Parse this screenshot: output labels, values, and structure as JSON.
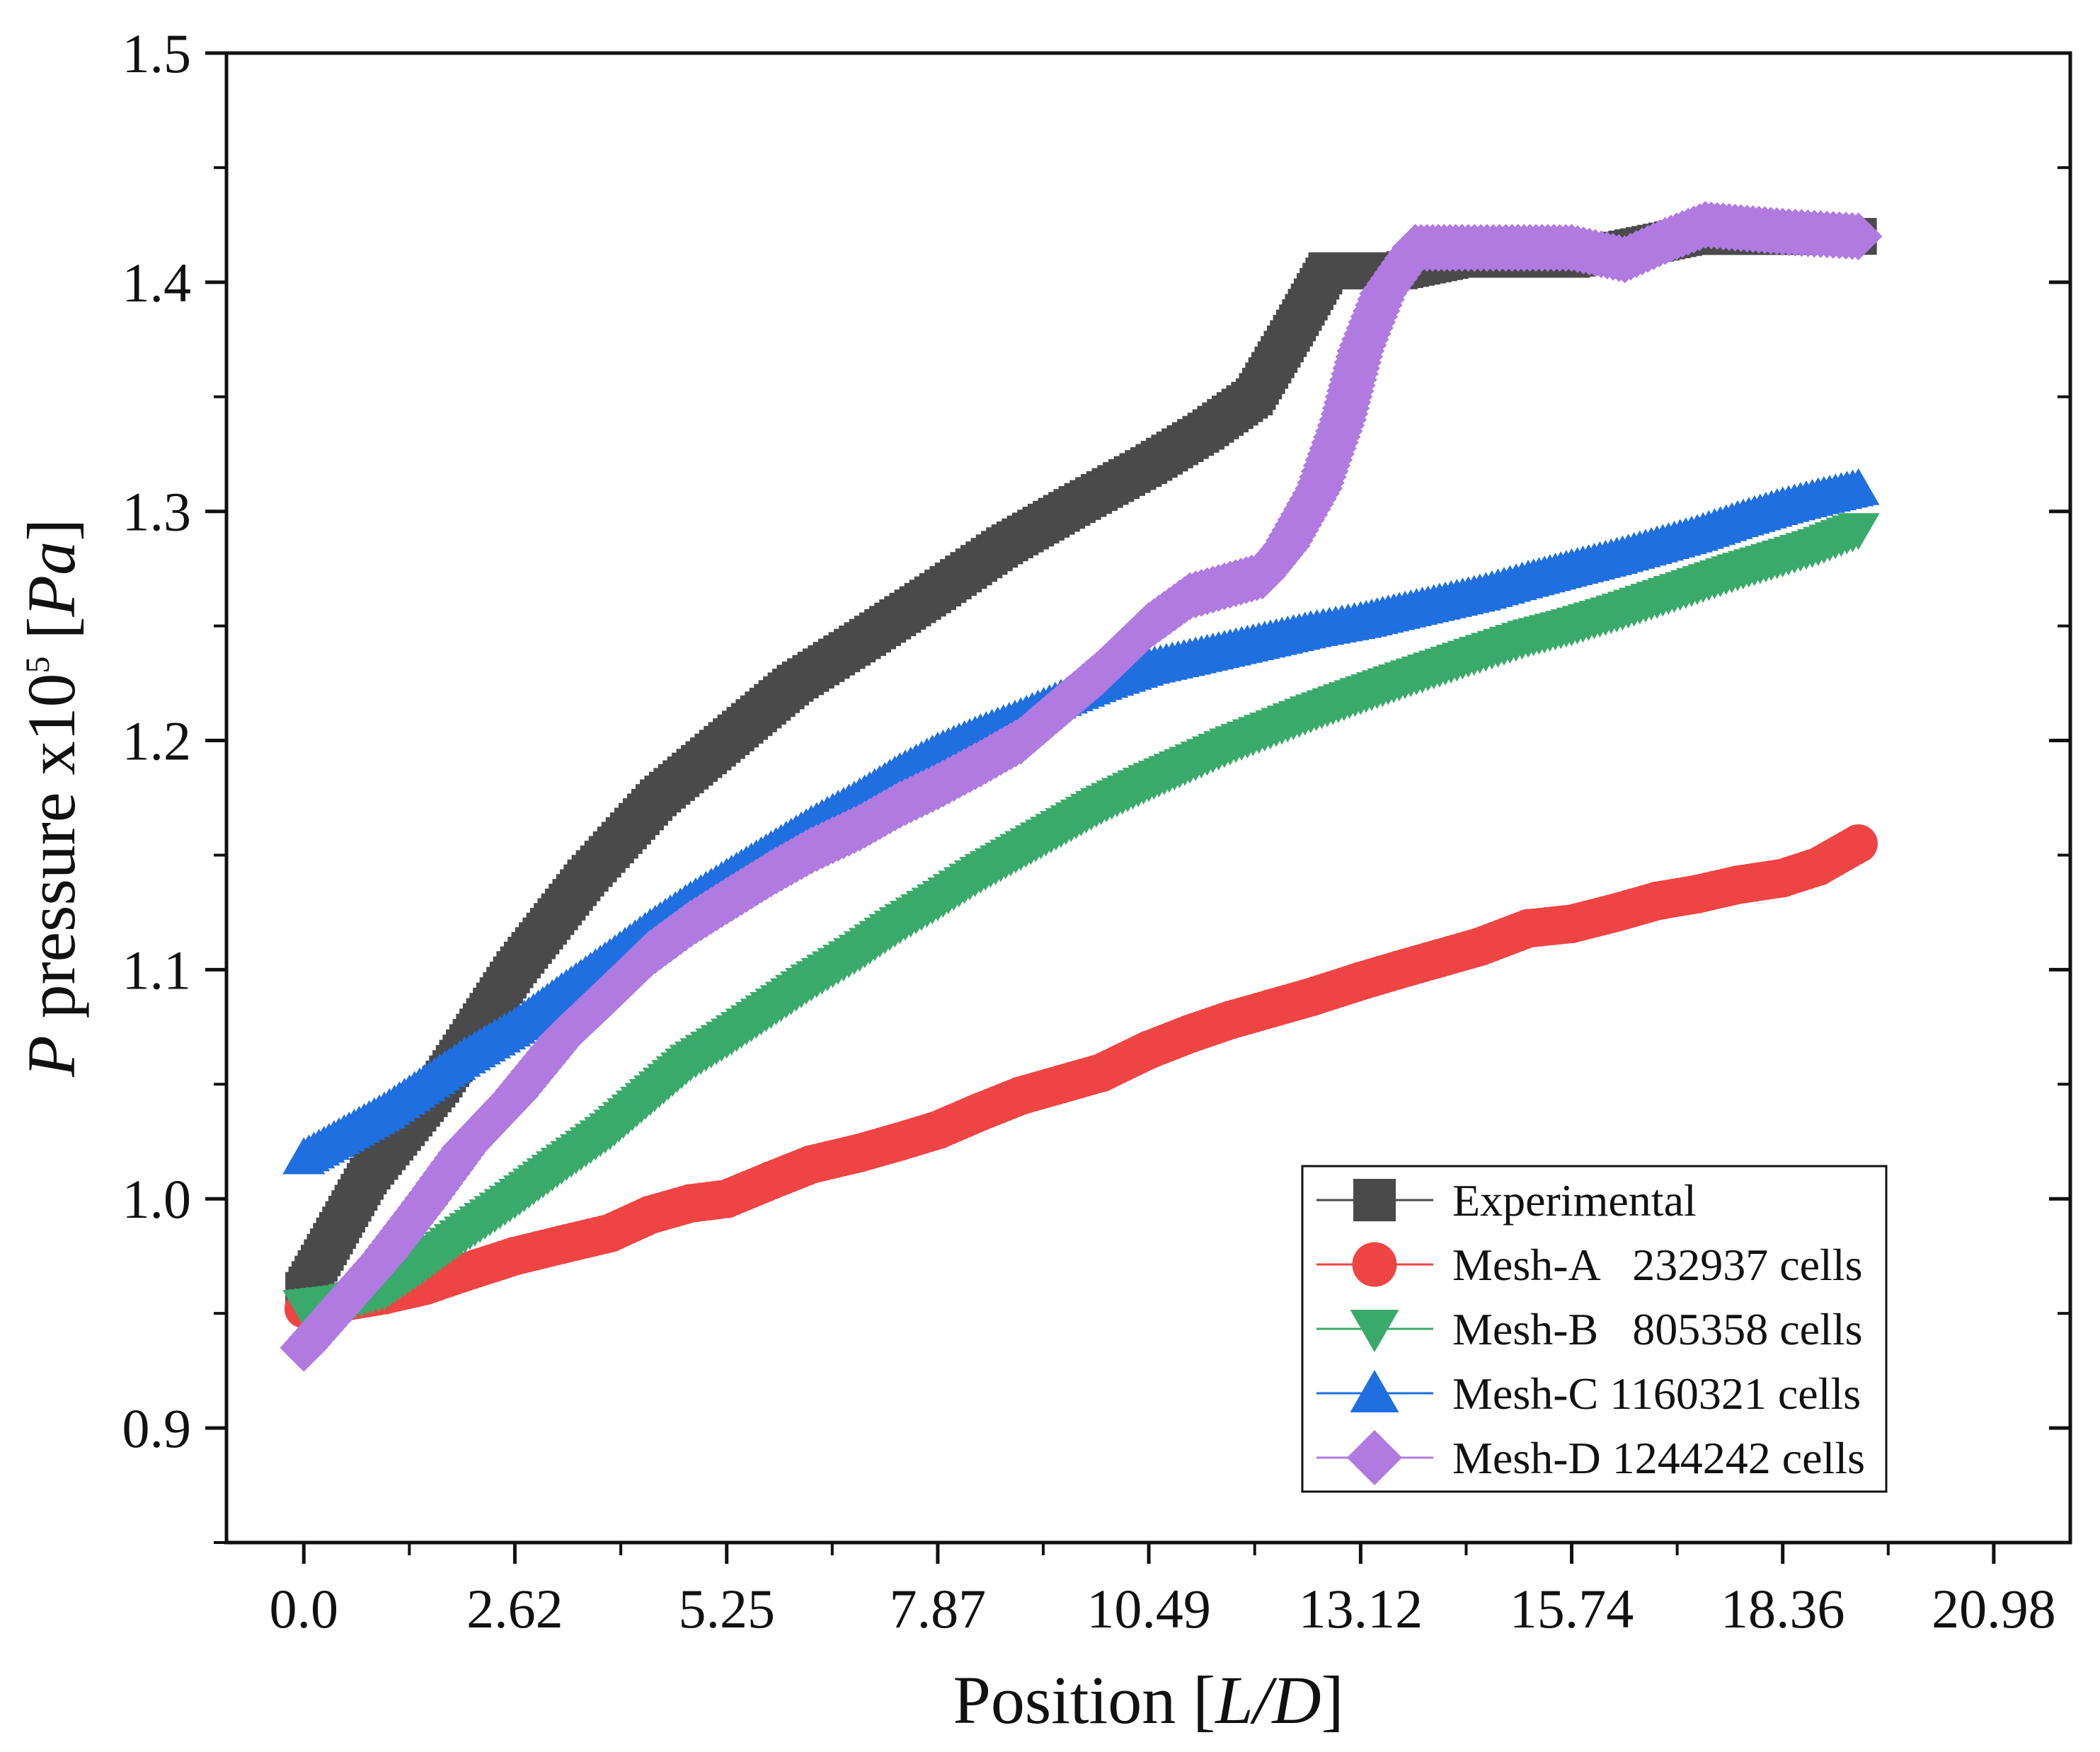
{
  "chart_data": {
    "type": "scatter",
    "title": "",
    "xlabel": {
      "prefix": "Position [",
      "italic": "L/D",
      "suffix": "]"
    },
    "ylabel": {
      "italic_p": "P",
      "text": " pressure x10",
      "superscript": "5",
      "unit_open": " [",
      "unit_italic": "Pa",
      "unit_close": "]"
    },
    "xlim": [
      -0.96,
      21.93
    ],
    "ylim": [
      0.85,
      1.5
    ],
    "x_ticks": [
      0.0,
      2.62,
      5.25,
      7.87,
      10.49,
      13.12,
      15.74,
      18.36,
      20.98
    ],
    "x_tick_labels": [
      "0.0",
      "2.62",
      "5.25",
      "7.87",
      "10.49",
      "13.12",
      "15.74",
      "18.36",
      "20.98"
    ],
    "y_ticks": [
      0.9,
      1.0,
      1.1,
      1.2,
      1.3,
      1.4,
      1.5
    ],
    "y_tick_labels": [
      "0.9",
      "1.0",
      "1.1",
      "1.2",
      "1.3",
      "1.4",
      "1.5"
    ],
    "grid": false,
    "legend_position": "bottom-right",
    "series": [
      {
        "name": "Experimental",
        "marker": "square",
        "color": "#4a4a4a",
        "x": [
          0.0,
          0.8,
          1.7,
          2.62,
          3.5,
          4.4,
          5.25,
          6.1,
          7.0,
          7.87,
          8.7,
          9.6,
          10.49,
          11.2,
          11.8,
          12.3,
          12.7,
          13.12,
          13.6,
          14.3,
          15.0,
          15.74,
          16.5,
          17.2,
          17.8,
          18.36,
          19.0,
          19.3
        ],
        "y": [
          0.96,
          1.01,
          1.05,
          1.1,
          1.14,
          1.175,
          1.2,
          1.225,
          1.245,
          1.265,
          1.285,
          1.303,
          1.32,
          1.335,
          1.35,
          1.38,
          1.405,
          1.405,
          1.405,
          1.41,
          1.41,
          1.41,
          1.415,
          1.42,
          1.42,
          1.42,
          1.42,
          1.42
        ]
      },
      {
        "name": "Mesh-A   232937 cells",
        "marker": "circle",
        "color": "#ef4444",
        "x": [
          0.0,
          0.5,
          1.0,
          1.5,
          2.0,
          2.62,
          3.2,
          3.8,
          4.3,
          4.8,
          5.25,
          5.8,
          6.3,
          6.9,
          7.4,
          7.87,
          8.4,
          8.9,
          9.4,
          9.9,
          10.49,
          11.0,
          11.5,
          12.0,
          12.5,
          13.12,
          13.6,
          14.1,
          14.6,
          15.2,
          15.74,
          16.3,
          16.8,
          17.3,
          17.8,
          18.36,
          18.8,
          19.3
        ],
        "y": [
          0.952,
          0.955,
          0.958,
          0.962,
          0.968,
          0.975,
          0.98,
          0.985,
          0.993,
          0.998,
          1.0,
          1.008,
          1.015,
          1.02,
          1.025,
          1.03,
          1.038,
          1.045,
          1.05,
          1.055,
          1.065,
          1.072,
          1.078,
          1.083,
          1.088,
          1.095,
          1.1,
          1.105,
          1.11,
          1.118,
          1.12,
          1.125,
          1.13,
          1.133,
          1.137,
          1.14,
          1.145,
          1.155
        ]
      },
      {
        "name": "Mesh-B   805358 cells",
        "marker": "triangle-down",
        "color": "#3aaa6a",
        "x": [
          0.0,
          0.5,
          1.0,
          1.5,
          2.0,
          2.62,
          3.2,
          3.8,
          4.3,
          4.8,
          5.25,
          5.8,
          6.3,
          6.9,
          7.4,
          7.87,
          8.4,
          8.9,
          9.4,
          9.9,
          10.49,
          11.0,
          11.5,
          12.0,
          12.5,
          13.12,
          13.6,
          14.1,
          14.6,
          15.2,
          15.74,
          16.3,
          16.8,
          17.3,
          17.8,
          18.36,
          18.8,
          19.3
        ],
        "y": [
          0.953,
          0.955,
          0.96,
          0.972,
          0.985,
          1.0,
          1.015,
          1.03,
          1.045,
          1.06,
          1.07,
          1.083,
          1.095,
          1.108,
          1.12,
          1.13,
          1.142,
          1.152,
          1.162,
          1.172,
          1.182,
          1.19,
          1.198,
          1.205,
          1.212,
          1.22,
          1.226,
          1.232,
          1.238,
          1.245,
          1.25,
          1.256,
          1.262,
          1.268,
          1.274,
          1.28,
          1.285,
          1.292
        ]
      },
      {
        "name": "Mesh-C 1160321 cells",
        "marker": "triangle-up",
        "color": "#1f6fe0",
        "x": [
          0.0,
          0.5,
          1.0,
          1.5,
          2.0,
          2.62,
          3.2,
          3.8,
          4.3,
          4.8,
          5.25,
          5.8,
          6.3,
          6.9,
          7.4,
          7.87,
          8.4,
          8.9,
          9.4,
          9.9,
          10.49,
          11.0,
          11.5,
          12.0,
          12.5,
          13.12,
          13.6,
          14.1,
          14.6,
          15.2,
          15.74,
          16.3,
          16.8,
          17.3,
          17.8,
          18.36,
          18.8,
          19.3
        ],
        "y": [
          1.018,
          1.028,
          1.038,
          1.05,
          1.062,
          1.075,
          1.09,
          1.105,
          1.118,
          1.13,
          1.14,
          1.152,
          1.163,
          1.175,
          1.186,
          1.195,
          1.203,
          1.21,
          1.218,
          1.225,
          1.232,
          1.236,
          1.24,
          1.244,
          1.248,
          1.252,
          1.256,
          1.26,
          1.264,
          1.27,
          1.275,
          1.28,
          1.285,
          1.29,
          1.296,
          1.302,
          1.306,
          1.31
        ]
      },
      {
        "name": "Mesh-D 1244242 cells",
        "marker": "diamond",
        "color": "#b07ae0",
        "x": [
          0.0,
          0.5,
          1.0,
          1.5,
          2.0,
          2.62,
          3.2,
          3.8,
          4.3,
          4.8,
          5.25,
          5.8,
          6.3,
          6.9,
          7.4,
          7.87,
          8.4,
          8.9,
          9.4,
          9.9,
          10.49,
          11.0,
          11.5,
          11.9,
          12.2,
          12.6,
          12.9,
          13.12,
          13.4,
          13.8,
          14.3,
          15.0,
          15.74,
          16.4,
          16.9,
          17.4,
          18.36,
          19.3
        ],
        "y": [
          0.935,
          0.955,
          0.975,
          0.998,
          1.022,
          1.045,
          1.07,
          1.09,
          1.107,
          1.12,
          1.13,
          1.142,
          1.152,
          1.162,
          1.172,
          1.18,
          1.19,
          1.2,
          1.215,
          1.23,
          1.25,
          1.263,
          1.268,
          1.272,
          1.285,
          1.31,
          1.34,
          1.37,
          1.395,
          1.415,
          1.415,
          1.415,
          1.415,
          1.41,
          1.418,
          1.425,
          1.422,
          1.42
        ]
      }
    ]
  }
}
